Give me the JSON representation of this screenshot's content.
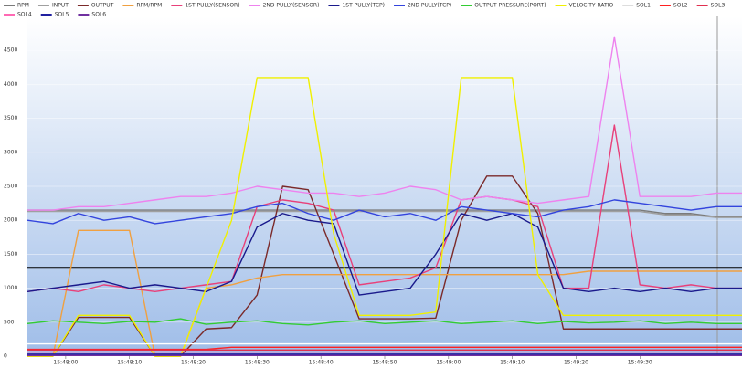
{
  "chart_data": {
    "type": "line",
    "x": [
      -6,
      -2,
      2,
      6,
      10,
      14,
      18,
      22,
      26,
      30,
      34,
      38,
      42,
      46,
      50,
      54,
      58,
      62,
      66,
      70,
      74,
      78,
      82,
      86,
      90,
      94,
      98,
      102,
      106
    ],
    "xlim": [
      -6,
      106
    ],
    "xticks": [
      {
        "value": 0,
        "label": "15:48:00"
      },
      {
        "value": 10,
        "label": "15:48:10"
      },
      {
        "value": 20,
        "label": "15:48:20"
      },
      {
        "value": 30,
        "label": "15:48:30"
      },
      {
        "value": 40,
        "label": "15:48:40"
      },
      {
        "value": 50,
        "label": "15:48:50"
      },
      {
        "value": 60,
        "label": "15:49:00"
      },
      {
        "value": 70,
        "label": "15:49:10"
      },
      {
        "value": 80,
        "label": "15:49:20"
      },
      {
        "value": 90,
        "label": "15:49:30"
      }
    ],
    "ylim": [
      0,
      5000
    ],
    "yticks": [
      0,
      500,
      1000,
      1500,
      2000,
      2500,
      3000,
      3500,
      4000,
      4500
    ],
    "grid": true,
    "reference_lines": [
      1300
    ],
    "series": [
      {
        "name": "RPM",
        "color": "#7a7a7a",
        "values": [
          2150,
          2150,
          2150,
          2150,
          2150,
          2150,
          2150,
          2150,
          2150,
          2150,
          2150,
          2150,
          2150,
          2150,
          2150,
          2150,
          2150,
          2150,
          2150,
          2150,
          2150,
          2150,
          2150,
          2150,
          2150,
          2100,
          2100,
          2050,
          2050
        ]
      },
      {
        "name": "INPUT",
        "color": "#a0a0a0",
        "values": [
          2130,
          2130,
          2130,
          2130,
          2130,
          2130,
          2130,
          2130,
          2130,
          2130,
          2130,
          2130,
          2130,
          2130,
          2130,
          2130,
          2130,
          2130,
          2130,
          2130,
          2130,
          2130,
          2130,
          2130,
          2130,
          2080,
          2080,
          2040,
          2040
        ]
      },
      {
        "name": "OUTPUT",
        "color": "#7b2a2a",
        "values": [
          0,
          0,
          570,
          570,
          570,
          0,
          0,
          400,
          420,
          900,
          2500,
          2450,
          1500,
          550,
          550,
          550,
          560,
          2000,
          2650,
          2650,
          2100,
          400,
          400,
          400,
          400,
          400,
          400,
          400,
          400
        ]
      },
      {
        "name": "RPM/RPM",
        "color": "#f0a040",
        "values": [
          0,
          0,
          1850,
          1850,
          1850,
          0,
          0,
          1000,
          1050,
          1150,
          1200,
          1200,
          1200,
          1200,
          1200,
          1200,
          1200,
          1200,
          1200,
          1200,
          1200,
          1200,
          1250,
          1250,
          1250,
          1250,
          1250,
          1250,
          1250
        ]
      },
      {
        "name": "1ST PULLY(SENSOR)",
        "color": "#e8407a",
        "values": [
          950,
          1000,
          950,
          1050,
          1000,
          950,
          1000,
          1050,
          1100,
          2200,
          2300,
          2250,
          2150,
          1050,
          1100,
          1150,
          1300,
          2300,
          2350,
          2300,
          2200,
          1000,
          1000,
          3400,
          1050,
          1000,
          1050,
          1000,
          1000
        ]
      },
      {
        "name": "2ND PULLY(SENSOR)",
        "color": "#ee82ee",
        "values": [
          2150,
          2150,
          2200,
          2200,
          2250,
          2300,
          2350,
          2350,
          2400,
          2500,
          2450,
          2400,
          2400,
          2350,
          2400,
          2500,
          2450,
          2300,
          2350,
          2300,
          2250,
          2300,
          2350,
          4700,
          2350,
          2350,
          2350,
          2400,
          2400
        ]
      },
      {
        "name": "1ST PULLY(TCP)",
        "color": "#1a1a8c",
        "values": [
          950,
          1000,
          1050,
          1100,
          1000,
          1050,
          1000,
          950,
          1100,
          1900,
          2100,
          2000,
          1950,
          900,
          950,
          1000,
          1500,
          2100,
          2000,
          2100,
          1900,
          1000,
          950,
          1000,
          950,
          1000,
          950,
          1000,
          1000
        ]
      },
      {
        "name": "2ND PULLY(TCP)",
        "color": "#3344dd",
        "values": [
          2000,
          1950,
          2100,
          2000,
          2050,
          1950,
          2000,
          2050,
          2100,
          2200,
          2250,
          2100,
          2000,
          2150,
          2050,
          2100,
          2000,
          2200,
          2150,
          2100,
          2050,
          2150,
          2200,
          2300,
          2250,
          2200,
          2150,
          2200,
          2200
        ]
      },
      {
        "name": "OUTPUT PRESSURE(PORT)",
        "color": "#33cc33",
        "values": [
          480,
          520,
          500,
          480,
          510,
          500,
          550,
          470,
          500,
          520,
          480,
          460,
          500,
          520,
          480,
          500,
          520,
          480,
          500,
          520,
          480,
          510,
          490,
          500,
          520,
          480,
          500,
          480,
          480
        ]
      },
      {
        "name": "VELOCITY RATIO",
        "color": "#f0f000",
        "values": [
          0,
          0,
          600,
          600,
          600,
          0,
          0,
          1000,
          2000,
          4100,
          4100,
          4100,
          1800,
          600,
          600,
          600,
          650,
          4100,
          4100,
          4100,
          1200,
          600,
          600,
          600,
          600,
          600,
          600,
          600,
          600
        ]
      },
      {
        "name": "SOL1",
        "color": "#ffffff",
        "values": [
          180,
          180,
          180,
          180,
          180,
          180,
          180,
          180,
          180,
          180,
          180,
          180,
          180,
          180,
          180,
          180,
          180,
          180,
          180,
          180,
          180,
          180,
          180,
          180,
          180,
          180,
          180,
          180,
          180
        ]
      },
      {
        "name": "SOL2",
        "color": "#ff2020",
        "values": [
          100,
          100,
          100,
          100,
          100,
          100,
          100,
          100,
          130,
          130,
          130,
          130,
          130,
          130,
          130,
          130,
          130,
          130,
          130,
          130,
          130,
          130,
          130,
          130,
          130,
          130,
          130,
          130,
          130
        ]
      },
      {
        "name": "SOL3",
        "color": "#e03050",
        "values": [
          90,
          90,
          90,
          90,
          90,
          90,
          90,
          90,
          90,
          90,
          90,
          90,
          90,
          90,
          90,
          90,
          90,
          90,
          90,
          90,
          90,
          90,
          90,
          90,
          90,
          90,
          90,
          90,
          90
        ]
      },
      {
        "name": "SOL4",
        "color": "#ff69b4",
        "values": [
          60,
          60,
          60,
          60,
          60,
          60,
          60,
          60,
          60,
          60,
          60,
          60,
          60,
          60,
          60,
          60,
          60,
          60,
          60,
          60,
          60,
          60,
          60,
          60,
          60,
          60,
          60,
          60,
          60
        ]
      },
      {
        "name": "SOL5",
        "color": "#2020a0",
        "values": [
          30,
          30,
          30,
          30,
          30,
          30,
          30,
          30,
          30,
          30,
          30,
          30,
          30,
          30,
          30,
          30,
          30,
          30,
          30,
          30,
          30,
          30,
          30,
          30,
          30,
          30,
          30,
          30,
          30
        ]
      },
      {
        "name": "SOL6",
        "color": "#7030a0",
        "values": [
          10,
          10,
          10,
          10,
          10,
          10,
          10,
          10,
          10,
          10,
          10,
          10,
          10,
          10,
          10,
          10,
          10,
          10,
          10,
          10,
          10,
          10,
          10,
          10,
          10,
          10,
          10,
          10,
          10
        ]
      }
    ]
  }
}
